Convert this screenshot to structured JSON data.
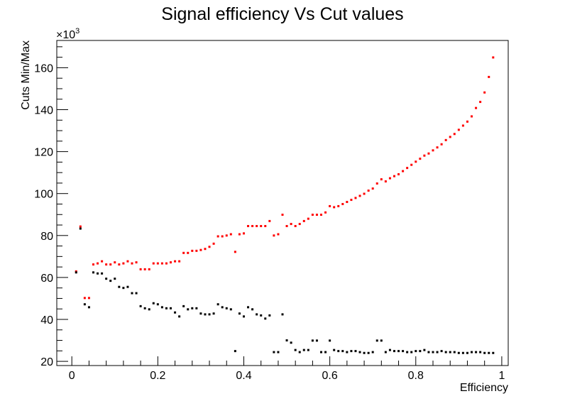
{
  "chart_data": {
    "type": "scatter",
    "title": "Signal efficiency Vs Cut values",
    "xlabel": "Efficiency",
    "ylabel": "Cuts Min/Max",
    "y_multiplier_label": "×10",
    "y_multiplier_exp": "3",
    "xlim": [
      -0.035,
      1.015
    ],
    "ylim": [
      18,
      173
    ],
    "x_ticks": [
      0,
      0.2,
      0.4,
      0.6,
      0.8,
      1
    ],
    "x_tick_labels": [
      "0",
      "0.2",
      "0.4",
      "0.6",
      "0.8",
      "1"
    ],
    "y_ticks": [
      20,
      40,
      60,
      80,
      100,
      120,
      140,
      160
    ],
    "y_tick_labels": [
      "20",
      "40",
      "60",
      "80",
      "100",
      "120",
      "140",
      "160"
    ],
    "grid": false,
    "legend": "none",
    "series": [
      {
        "color": "#ff0000",
        "points": [
          [
            0.01,
            62.9
          ],
          [
            0.02,
            84.3
          ],
          [
            0.03,
            50.2
          ],
          [
            0.04,
            50.2
          ],
          [
            0.05,
            66.2
          ],
          [
            0.06,
            66.7
          ],
          [
            0.07,
            67.7
          ],
          [
            0.08,
            66.2
          ],
          [
            0.09,
            66.2
          ],
          [
            0.1,
            67.2
          ],
          [
            0.11,
            66.2
          ],
          [
            0.12,
            66.7
          ],
          [
            0.13,
            67.7
          ],
          [
            0.14,
            66.7
          ],
          [
            0.15,
            67.2
          ],
          [
            0.16,
            63.9
          ],
          [
            0.17,
            63.9
          ],
          [
            0.18,
            63.9
          ],
          [
            0.19,
            66.7
          ],
          [
            0.2,
            66.7
          ],
          [
            0.21,
            66.7
          ],
          [
            0.22,
            66.7
          ],
          [
            0.23,
            67.2
          ],
          [
            0.24,
            67.7
          ],
          [
            0.25,
            67.7
          ],
          [
            0.26,
            71.7
          ],
          [
            0.27,
            71.7
          ],
          [
            0.28,
            72.7
          ],
          [
            0.29,
            72.7
          ],
          [
            0.3,
            73.1
          ],
          [
            0.31,
            73.6
          ],
          [
            0.32,
            74.6
          ],
          [
            0.33,
            76.1
          ],
          [
            0.34,
            79.6
          ],
          [
            0.35,
            79.6
          ],
          [
            0.36,
            80.0
          ],
          [
            0.37,
            80.6
          ],
          [
            0.38,
            72.2
          ],
          [
            0.39,
            80.6
          ],
          [
            0.4,
            81.0
          ],
          [
            0.41,
            84.5
          ],
          [
            0.42,
            84.5
          ],
          [
            0.43,
            84.5
          ],
          [
            0.44,
            84.5
          ],
          [
            0.45,
            84.5
          ],
          [
            0.46,
            86.9
          ],
          [
            0.47,
            80.0
          ],
          [
            0.48,
            80.6
          ],
          [
            0.49,
            89.9
          ],
          [
            0.5,
            84.5
          ],
          [
            0.51,
            85.5
          ],
          [
            0.52,
            84.5
          ],
          [
            0.53,
            85.5
          ],
          [
            0.54,
            86.9
          ],
          [
            0.55,
            88.0
          ],
          [
            0.56,
            89.9
          ],
          [
            0.57,
            89.9
          ],
          [
            0.58,
            89.9
          ],
          [
            0.59,
            91.0
          ],
          [
            0.6,
            94.0
          ],
          [
            0.61,
            93.5
          ],
          [
            0.62,
            94.0
          ],
          [
            0.63,
            95.0
          ],
          [
            0.64,
            96.0
          ],
          [
            0.65,
            97.0
          ],
          [
            0.66,
            97.9
          ],
          [
            0.67,
            98.9
          ],
          [
            0.68,
            99.9
          ],
          [
            0.69,
            101.4
          ],
          [
            0.7,
            102.4
          ],
          [
            0.71,
            104.8
          ],
          [
            0.72,
            106.8
          ],
          [
            0.73,
            105.8
          ],
          [
            0.74,
            107.3
          ],
          [
            0.75,
            108.3
          ],
          [
            0.76,
            109.2
          ],
          [
            0.77,
            110.7
          ],
          [
            0.78,
            112.2
          ],
          [
            0.79,
            113.7
          ],
          [
            0.8,
            115.2
          ],
          [
            0.81,
            116.6
          ],
          [
            0.82,
            118.1
          ],
          [
            0.83,
            119.1
          ],
          [
            0.84,
            120.6
          ],
          [
            0.85,
            122.0
          ],
          [
            0.86,
            123.5
          ],
          [
            0.87,
            125.5
          ],
          [
            0.88,
            127.0
          ],
          [
            0.89,
            128.4
          ],
          [
            0.9,
            130.4
          ],
          [
            0.91,
            132.4
          ],
          [
            0.92,
            134.3
          ],
          [
            0.93,
            136.8
          ],
          [
            0.94,
            140.8
          ],
          [
            0.95,
            143.7
          ],
          [
            0.96,
            148.2
          ],
          [
            0.97,
            155.6
          ],
          [
            0.98,
            164.9
          ]
        ]
      },
      {
        "color": "#000000",
        "points": [
          [
            0.01,
            62.4
          ],
          [
            0.02,
            83.3
          ],
          [
            0.03,
            47.2
          ],
          [
            0.04,
            45.8
          ],
          [
            0.05,
            62.4
          ],
          [
            0.06,
            61.9
          ],
          [
            0.07,
            61.9
          ],
          [
            0.08,
            59.4
          ],
          [
            0.09,
            58.4
          ],
          [
            0.1,
            59.4
          ],
          [
            0.11,
            55.5
          ],
          [
            0.12,
            55.0
          ],
          [
            0.13,
            55.5
          ],
          [
            0.14,
            52.5
          ],
          [
            0.15,
            52.5
          ],
          [
            0.16,
            46.3
          ],
          [
            0.17,
            45.3
          ],
          [
            0.18,
            44.8
          ],
          [
            0.19,
            47.7
          ],
          [
            0.2,
            47.2
          ],
          [
            0.21,
            45.8
          ],
          [
            0.22,
            45.3
          ],
          [
            0.23,
            45.3
          ],
          [
            0.24,
            43.3
          ],
          [
            0.25,
            41.4
          ],
          [
            0.26,
            46.3
          ],
          [
            0.27,
            44.8
          ],
          [
            0.28,
            45.3
          ],
          [
            0.29,
            45.3
          ],
          [
            0.3,
            42.8
          ],
          [
            0.31,
            42.4
          ],
          [
            0.32,
            42.4
          ],
          [
            0.33,
            42.8
          ],
          [
            0.34,
            47.2
          ],
          [
            0.35,
            45.8
          ],
          [
            0.36,
            45.3
          ],
          [
            0.37,
            44.8
          ],
          [
            0.38,
            24.9
          ],
          [
            0.39,
            42.8
          ],
          [
            0.4,
            41.4
          ],
          [
            0.41,
            45.8
          ],
          [
            0.42,
            44.8
          ],
          [
            0.43,
            42.4
          ],
          [
            0.44,
            41.9
          ],
          [
            0.45,
            40.4
          ],
          [
            0.46,
            41.9
          ],
          [
            0.47,
            24.4
          ],
          [
            0.48,
            24.4
          ],
          [
            0.49,
            42.4
          ],
          [
            0.5,
            30.0
          ],
          [
            0.51,
            28.9
          ],
          [
            0.52,
            25.4
          ],
          [
            0.53,
            24.4
          ],
          [
            0.54,
            25.4
          ],
          [
            0.55,
            25.4
          ],
          [
            0.56,
            29.9
          ],
          [
            0.57,
            29.9
          ],
          [
            0.58,
            24.4
          ],
          [
            0.59,
            24.4
          ],
          [
            0.6,
            29.9
          ],
          [
            0.61,
            25.4
          ],
          [
            0.62,
            24.9
          ],
          [
            0.63,
            24.9
          ],
          [
            0.64,
            24.4
          ],
          [
            0.65,
            24.9
          ],
          [
            0.66,
            24.9
          ],
          [
            0.67,
            24.4
          ],
          [
            0.68,
            24.0
          ],
          [
            0.69,
            24.0
          ],
          [
            0.7,
            24.4
          ],
          [
            0.71,
            29.9
          ],
          [
            0.72,
            29.9
          ],
          [
            0.73,
            24.4
          ],
          [
            0.74,
            25.4
          ],
          [
            0.75,
            24.9
          ],
          [
            0.76,
            24.9
          ],
          [
            0.77,
            24.9
          ],
          [
            0.78,
            24.4
          ],
          [
            0.79,
            24.4
          ],
          [
            0.8,
            24.9
          ],
          [
            0.81,
            24.9
          ],
          [
            0.82,
            25.4
          ],
          [
            0.83,
            24.4
          ],
          [
            0.84,
            24.4
          ],
          [
            0.85,
            24.4
          ],
          [
            0.86,
            24.9
          ],
          [
            0.87,
            24.4
          ],
          [
            0.88,
            24.4
          ],
          [
            0.89,
            24.4
          ],
          [
            0.9,
            24.0
          ],
          [
            0.91,
            24.0
          ],
          [
            0.92,
            24.0
          ],
          [
            0.93,
            24.4
          ],
          [
            0.94,
            24.4
          ],
          [
            0.95,
            24.4
          ],
          [
            0.96,
            24.0
          ],
          [
            0.97,
            24.0
          ],
          [
            0.98,
            24.0
          ]
        ]
      }
    ]
  }
}
